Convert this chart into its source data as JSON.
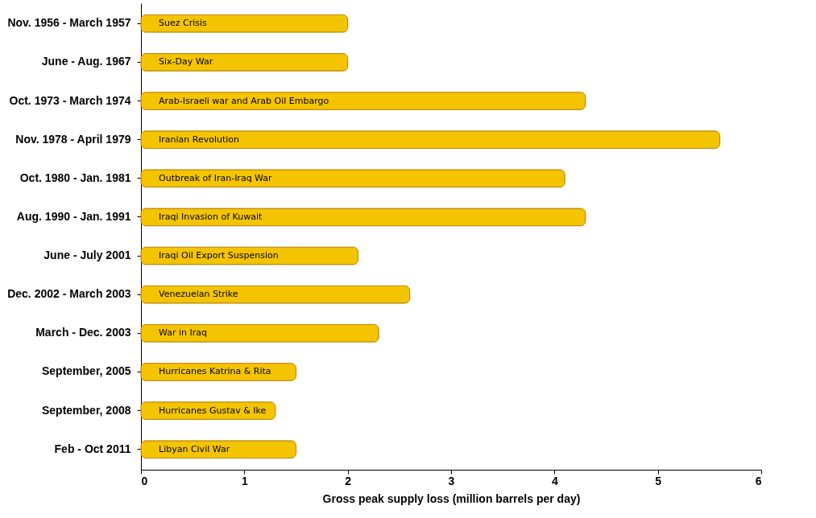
{
  "chart_data": {
    "type": "bar",
    "orientation": "horizontal",
    "xlabel": "Gross peak supply loss (million barrels per day)",
    "categories": [
      "Nov. 1956 - March 1957",
      "June - Aug. 1967",
      "Oct. 1973 - March 1974",
      "Nov. 1978 - April 1979",
      "Oct. 1980 - Jan. 1981",
      "Aug. 1990 - Jan. 1991",
      "June - July 2001",
      "Dec. 2002 - March 2003",
      "March - Dec. 2003",
      "September, 2005",
      "September, 2008",
      "Feb - Oct 2011"
    ],
    "values": [
      2.0,
      2.0,
      4.3,
      5.6,
      4.1,
      4.3,
      2.1,
      2.6,
      2.3,
      1.5,
      1.3,
      1.5
    ],
    "color": "#f5c400",
    "xlim": [
      0,
      6
    ],
    "xticks": [
      0,
      1,
      2,
      3,
      4,
      5,
      6
    ],
    "grid": false,
    "annotations": [
      "Suez Crisis",
      "Six-Day War",
      "Arab-Israeli war and Arab Oil Embargo",
      "Iranian Revolution",
      "Outbreak of Iran-Iraq War",
      "Iraqi Invasion of Kuwait",
      "Iraqi Oil Export Suspension",
      "Venezuelan Strike",
      "War in Iraq",
      "Hurricanes Katrina & Rita",
      "Hurricanes Gustav & Ike",
      "Libyan Civil War"
    ]
  }
}
